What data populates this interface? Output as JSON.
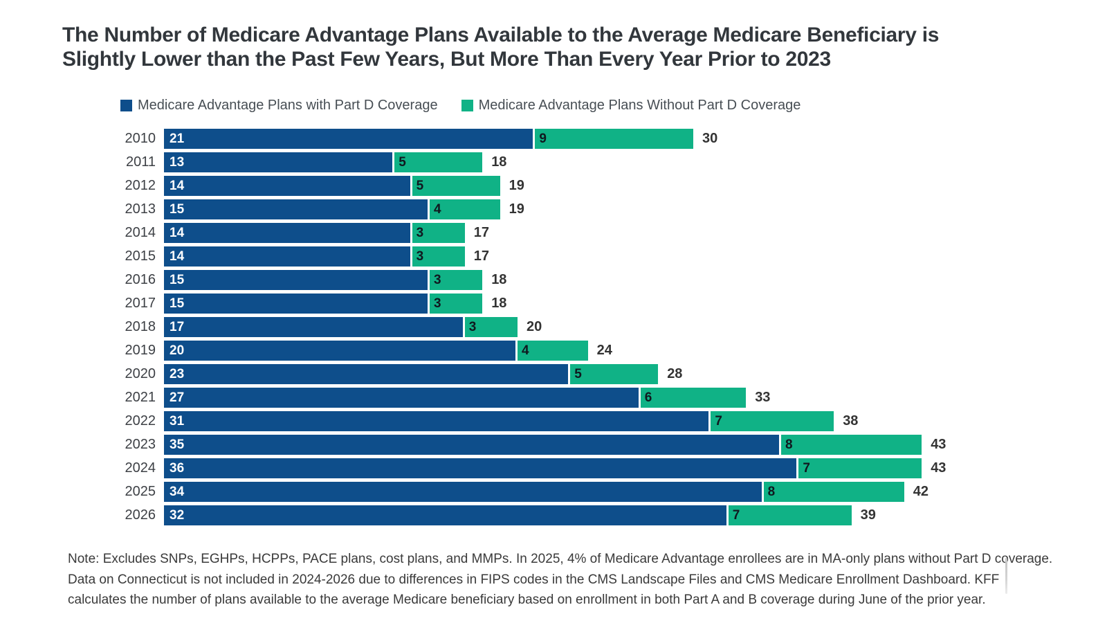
{
  "title": {
    "text": "The Number of Medicare Advantage Plans Available to the Average Medicare Beneficiary is Slightly Lower than the Past Few Years, But More Than Every Year Prior to 2023",
    "lines": [
      "The Number of Medicare Advantage Plans Available to the Average Medicare Beneficiary is",
      "Slightly Lower than the Past Few Years, But More Than Every Year Prior to 2023"
    ],
    "color": "#32373c"
  },
  "legend": [
    {
      "label": "Medicare Advantage Plans with Part D Coverage",
      "color": "#0e4e8b"
    },
    {
      "label": "Medicare Advantage Plans Without Part D Coverage",
      "color": "#10b286"
    }
  ],
  "chart_data": {
    "type": "bar",
    "orientation": "horizontal",
    "stacked": true,
    "title": "The Number of Medicare Advantage Plans Available to the Average Medicare Beneficiary is Slightly Lower than the Past Few Years, But More Than Every Year Prior to 2023",
    "categories": [
      "2010",
      "2011",
      "2012",
      "2013",
      "2014",
      "2015",
      "2016",
      "2017",
      "2018",
      "2019",
      "2020",
      "2021",
      "2022",
      "2023",
      "2024",
      "2025",
      "2026"
    ],
    "series": [
      {
        "name": "Medicare Advantage Plans with Part D Coverage",
        "color": "#0e4e8b",
        "values": [
          21,
          13,
          14,
          15,
          14,
          14,
          15,
          15,
          17,
          20,
          23,
          27,
          31,
          35,
          36,
          34,
          32
        ]
      },
      {
        "name": "Medicare Advantage Plans Without Part D Coverage",
        "color": "#10b286",
        "values": [
          9,
          5,
          5,
          4,
          3,
          3,
          3,
          3,
          3,
          4,
          5,
          6,
          7,
          8,
          7,
          8,
          7
        ]
      }
    ],
    "totals": [
      30,
      18,
      19,
      19,
      17,
      17,
      18,
      18,
      20,
      24,
      28,
      33,
      38,
      43,
      43,
      42,
      39
    ],
    "xlim": [
      0,
      43
    ],
    "grid": false,
    "legend_position": "top",
    "value_labels": "inside-start",
    "total_labels": "outside-end"
  },
  "note": {
    "lines": [
      "Note: Excludes SNPs, EGHPs, HCPPs, PACE plans, cost plans, and MMPs. In 2025, 4% of Medicare Advantage enrollees are in MA-only plans without Part D coverage.",
      "Data on Connecticut is not included in 2024-2026 due to differences in FIPS codes in the CMS Landscape Files and CMS Medicare Enrollment Dashboard. KFF",
      "calculates the number of plans available to the average Medicare beneficiary based on enrollment in both Part A and B coverage during June of the prior year."
    ]
  }
}
